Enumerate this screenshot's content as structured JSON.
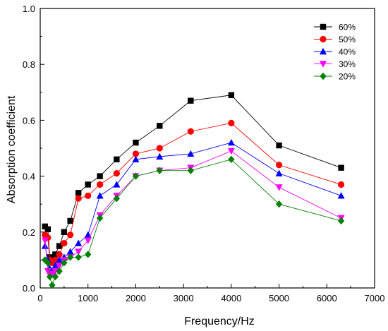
{
  "chart_data": {
    "type": "line",
    "xlabel": "Frequency/Hz",
    "ylabel": "Absorption coefficient",
    "xlim": [
      0,
      7000
    ],
    "ylim": [
      0.0,
      1.0
    ],
    "xticks": [
      0,
      1000,
      2000,
      3000,
      4000,
      5000,
      6000,
      7000
    ],
    "yticks": [
      0.0,
      0.2,
      0.4,
      0.6,
      0.8,
      1.0
    ],
    "xtick_labels": [
      "0",
      "1000",
      "2000",
      "3000",
      "4000",
      "5000",
      "6000",
      "7000"
    ],
    "ytick_labels": [
      "0.0",
      "0.2",
      "0.4",
      "0.6",
      "0.8",
      "1.0"
    ],
    "grid": false,
    "legend_position": "top-right",
    "x": [
      100,
      160,
      200,
      250,
      315,
      400,
      500,
      630,
      800,
      1000,
      1250,
      1600,
      2000,
      2500,
      3150,
      4000,
      5000,
      6300
    ],
    "series": [
      {
        "name": "60%",
        "color": "#000000",
        "marker": "square",
        "values": [
          0.22,
          0.21,
          0.11,
          0.1,
          0.12,
          0.15,
          0.2,
          0.24,
          0.34,
          0.37,
          0.4,
          0.46,
          0.52,
          0.58,
          0.67,
          0.69,
          0.51,
          0.43
        ]
      },
      {
        "name": "50%",
        "color": "#ff0000",
        "marker": "circle",
        "values": [
          0.19,
          0.18,
          0.1,
          0.09,
          0.1,
          0.12,
          0.16,
          0.19,
          0.32,
          0.33,
          0.37,
          0.41,
          0.48,
          0.5,
          0.56,
          0.59,
          0.44,
          0.37
        ]
      },
      {
        "name": "40%",
        "color": "#0000ff",
        "marker": "triangle-up",
        "values": [
          0.15,
          0.1,
          0.07,
          0.06,
          0.08,
          0.1,
          0.11,
          0.13,
          0.16,
          0.19,
          0.33,
          0.37,
          0.46,
          0.47,
          0.48,
          0.52,
          0.41,
          0.33
        ]
      },
      {
        "name": "30%",
        "color": "#ff00ff",
        "marker": "triangle-down",
        "values": [
          0.17,
          0.06,
          0.05,
          0.05,
          0.06,
          0.08,
          0.1,
          0.11,
          0.13,
          0.17,
          0.26,
          0.33,
          0.4,
          0.42,
          0.43,
          0.49,
          0.36,
          0.25
        ]
      },
      {
        "name": "20%",
        "color": "#008000",
        "marker": "diamond",
        "values": [
          0.1,
          0.09,
          0.04,
          0.01,
          0.04,
          0.06,
          0.09,
          0.11,
          0.11,
          0.12,
          0.25,
          0.32,
          0.4,
          0.42,
          0.42,
          0.46,
          0.3,
          0.24
        ]
      }
    ]
  }
}
